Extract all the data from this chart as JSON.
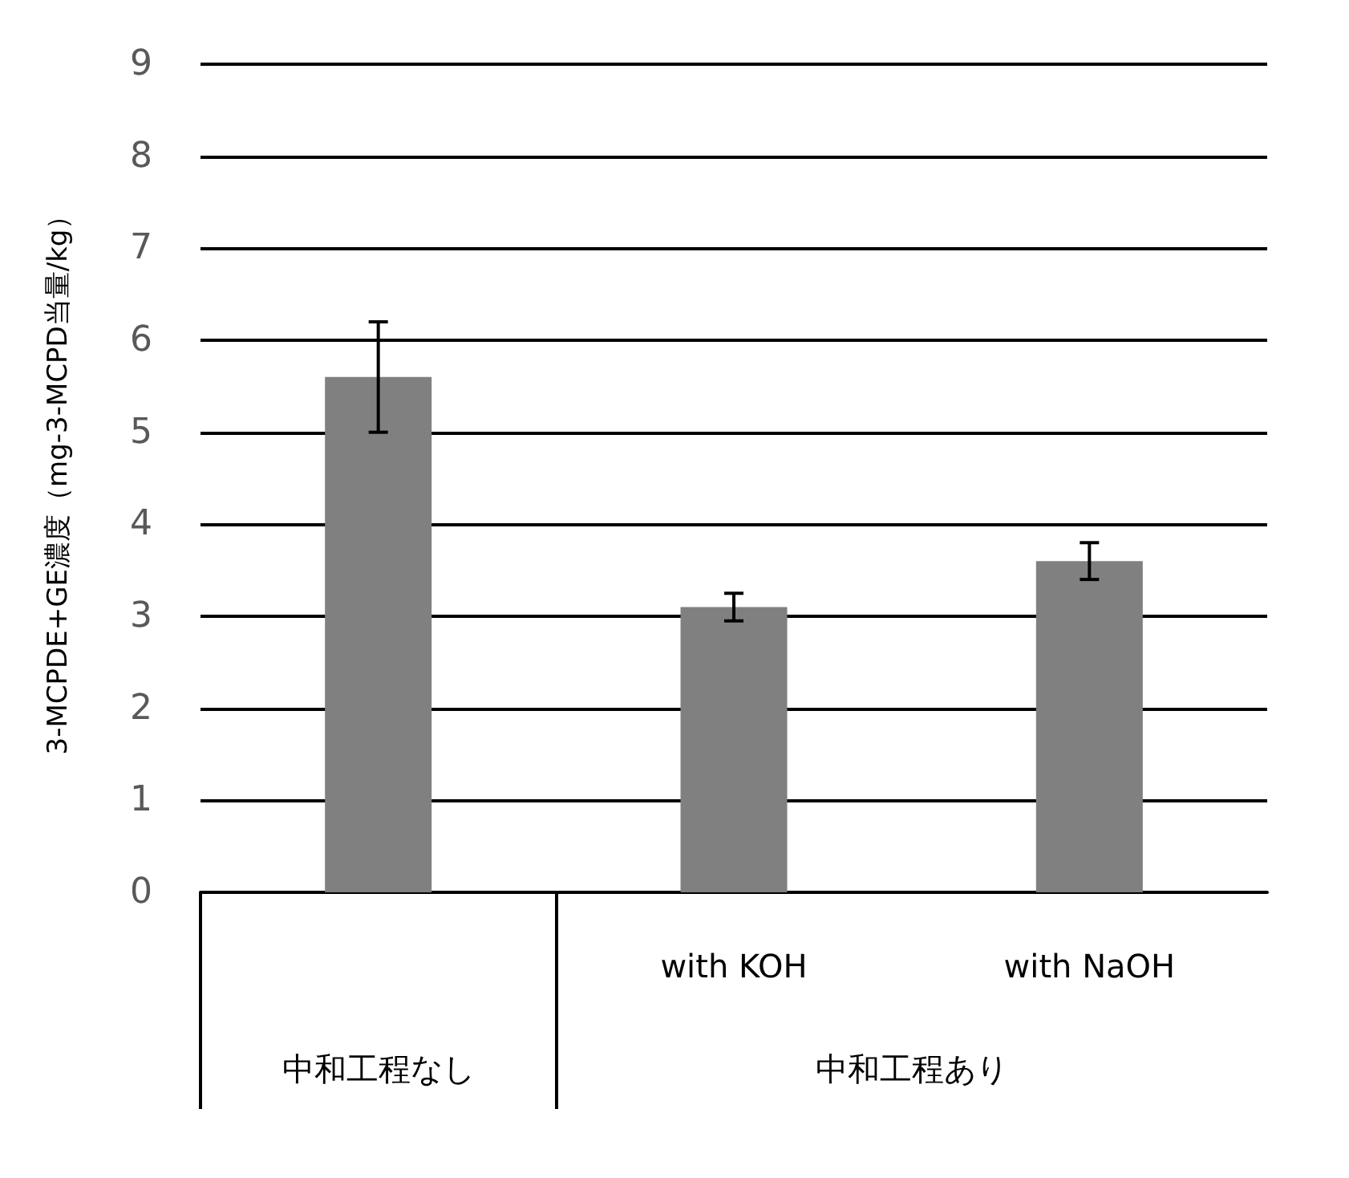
{
  "chart_data": {
    "type": "bar",
    "ylabel": "3-MCPDE+GE濃度（mg-3-MCPD当量/kg）",
    "categories": [
      null,
      "with KOH",
      "with NaOH"
    ],
    "values": [
      5.6,
      3.1,
      3.6
    ],
    "errors": [
      0.6,
      0.15,
      0.2
    ],
    "color": "#808080",
    "annotations": [
      "中和工程なし",
      "中和工程あり"
    ],
    "ylim": [
      0,
      9
    ],
    "yticks": [
      0,
      1,
      2,
      3,
      4,
      5,
      6,
      7,
      8,
      9
    ],
    "grid": "y"
  }
}
